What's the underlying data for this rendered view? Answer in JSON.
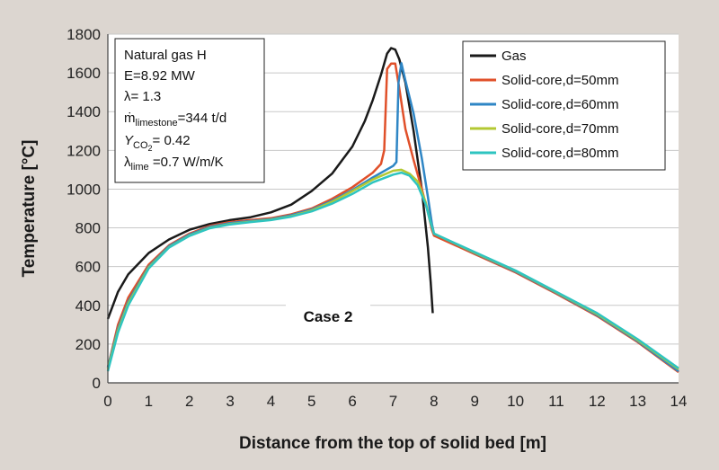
{
  "chart_data": {
    "type": "line",
    "xlabel": "Distance from the top of solid bed [m]",
    "ylabel": "Temperature [°C]",
    "xlim": [
      0,
      14
    ],
    "ylim": [
      0,
      1800
    ],
    "xticks": [
      0,
      1,
      2,
      3,
      4,
      5,
      6,
      7,
      8,
      9,
      10,
      11,
      12,
      13,
      14
    ],
    "yticks": [
      0,
      200,
      400,
      600,
      800,
      1000,
      1200,
      1400,
      1600,
      1800
    ],
    "grid": "horizontal",
    "legend_position": "top-right",
    "annotation": "Case 2",
    "info_box": {
      "line1": "Natural gas H",
      "line2": "E=8.92 MW",
      "line3": "λ= 1.3",
      "line4_prefix": "ṁ",
      "line4_sub": "limestone",
      "line4_suffix": "=344 t/d",
      "line5_prefix": "Y",
      "line5_sub": "CO",
      "line5_subsub": "2",
      "line5_suffix": "=  0.42",
      "line6_prefix": "λ",
      "line6_sub": "lime",
      "line6_suffix": " =0.7 W/m/K"
    },
    "series": [
      {
        "name": "Gas",
        "color": "#1a1a1a",
        "points": [
          [
            0,
            330
          ],
          [
            0.25,
            470
          ],
          [
            0.5,
            560
          ],
          [
            1,
            670
          ],
          [
            1.5,
            740
          ],
          [
            2,
            790
          ],
          [
            2.5,
            820
          ],
          [
            3,
            840
          ],
          [
            3.5,
            855
          ],
          [
            4,
            880
          ],
          [
            4.5,
            920
          ],
          [
            5,
            990
          ],
          [
            5.5,
            1080
          ],
          [
            6,
            1220
          ],
          [
            6.3,
            1350
          ],
          [
            6.5,
            1460
          ],
          [
            6.7,
            1590
          ],
          [
            6.85,
            1700
          ],
          [
            6.95,
            1728
          ],
          [
            7.05,
            1720
          ],
          [
            7.15,
            1670
          ],
          [
            7.3,
            1550
          ],
          [
            7.5,
            1300
          ],
          [
            7.7,
            1000
          ],
          [
            7.85,
            700
          ],
          [
            7.92,
            520
          ],
          [
            7.97,
            360
          ]
        ]
      },
      {
        "name": "Solid-core,d=50mm",
        "color": "#e0502a",
        "points": [
          [
            0,
            80
          ],
          [
            0.25,
            300
          ],
          [
            0.5,
            440
          ],
          [
            1,
            610
          ],
          [
            1.5,
            710
          ],
          [
            2,
            770
          ],
          [
            2.5,
            810
          ],
          [
            3,
            830
          ],
          [
            3.5,
            840
          ],
          [
            4,
            850
          ],
          [
            4.5,
            870
          ],
          [
            5,
            900
          ],
          [
            5.5,
            950
          ],
          [
            6,
            1010
          ],
          [
            6.5,
            1085
          ],
          [
            6.7,
            1130
          ],
          [
            6.78,
            1200
          ],
          [
            6.85,
            1620
          ],
          [
            6.95,
            1648
          ],
          [
            7.05,
            1648
          ],
          [
            7.15,
            1520
          ],
          [
            7.3,
            1310
          ],
          [
            7.5,
            1150
          ],
          [
            7.7,
            1000
          ],
          [
            7.85,
            880
          ],
          [
            7.95,
            790
          ],
          [
            8,
            760
          ],
          [
            9,
            665
          ],
          [
            10,
            570
          ],
          [
            11,
            460
          ],
          [
            12,
            345
          ],
          [
            13,
            210
          ],
          [
            14,
            55
          ]
        ]
      },
      {
        "name": "Solid-core,d=60mm",
        "color": "#2f86c5",
        "points": [
          [
            0,
            80
          ],
          [
            0.25,
            280
          ],
          [
            0.5,
            420
          ],
          [
            1,
            600
          ],
          [
            1.5,
            705
          ],
          [
            2,
            765
          ],
          [
            2.5,
            805
          ],
          [
            3,
            825
          ],
          [
            3.5,
            835
          ],
          [
            4,
            845
          ],
          [
            4.5,
            865
          ],
          [
            5,
            895
          ],
          [
            5.5,
            940
          ],
          [
            6,
            995
          ],
          [
            6.5,
            1060
          ],
          [
            7,
            1120
          ],
          [
            7.08,
            1140
          ],
          [
            7.13,
            1550
          ],
          [
            7.2,
            1650
          ],
          [
            7.3,
            1560
          ],
          [
            7.5,
            1390
          ],
          [
            7.7,
            1160
          ],
          [
            7.85,
            960
          ],
          [
            7.95,
            820
          ],
          [
            8,
            770
          ],
          [
            9,
            670
          ],
          [
            10,
            575
          ],
          [
            11,
            465
          ],
          [
            12,
            350
          ],
          [
            13,
            215
          ],
          [
            14,
            60
          ]
        ]
      },
      {
        "name": "Solid-core,d=70mm",
        "color": "#b3c832",
        "points": [
          [
            0,
            70
          ],
          [
            0.25,
            270
          ],
          [
            0.5,
            410
          ],
          [
            1,
            595
          ],
          [
            1.5,
            700
          ],
          [
            2,
            760
          ],
          [
            2.5,
            800
          ],
          [
            3,
            820
          ],
          [
            3.5,
            832
          ],
          [
            4,
            842
          ],
          [
            4.5,
            860
          ],
          [
            5,
            890
          ],
          [
            5.5,
            935
          ],
          [
            6,
            990
          ],
          [
            6.5,
            1050
          ],
          [
            7,
            1095
          ],
          [
            7.2,
            1100
          ],
          [
            7.4,
            1080
          ],
          [
            7.6,
            1040
          ],
          [
            7.8,
            930
          ],
          [
            7.9,
            840
          ],
          [
            8,
            770
          ],
          [
            9,
            672
          ],
          [
            10,
            578
          ],
          [
            11,
            468
          ],
          [
            12,
            355
          ],
          [
            13,
            220
          ],
          [
            14,
            70
          ]
        ]
      },
      {
        "name": "Solid-core,d=80mm",
        "color": "#2ec4c0",
        "points": [
          [
            0,
            60
          ],
          [
            0.25,
            260
          ],
          [
            0.5,
            400
          ],
          [
            1,
            590
          ],
          [
            1.5,
            698
          ],
          [
            2,
            758
          ],
          [
            2.5,
            798
          ],
          [
            3,
            818
          ],
          [
            3.5,
            830
          ],
          [
            4,
            840
          ],
          [
            4.5,
            858
          ],
          [
            5,
            885
          ],
          [
            5.5,
            925
          ],
          [
            6,
            975
          ],
          [
            6.5,
            1035
          ],
          [
            7,
            1075
          ],
          [
            7.2,
            1085
          ],
          [
            7.4,
            1070
          ],
          [
            7.6,
            1020
          ],
          [
            7.8,
            920
          ],
          [
            7.9,
            840
          ],
          [
            8,
            770
          ],
          [
            9,
            675
          ],
          [
            10,
            580
          ],
          [
            11,
            470
          ],
          [
            12,
            360
          ],
          [
            13,
            225
          ],
          [
            14,
            75
          ]
        ]
      }
    ]
  }
}
